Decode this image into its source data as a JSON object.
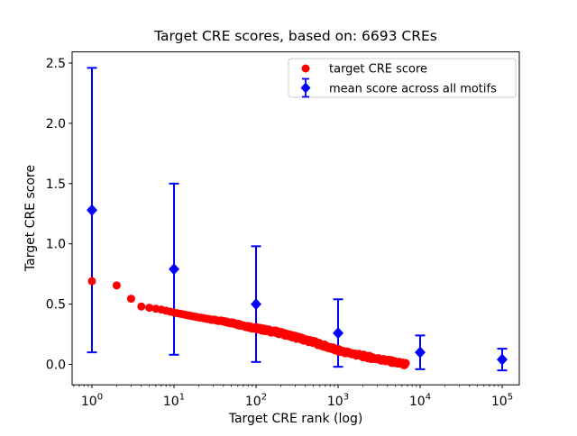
{
  "title": "Target CRE scores, based on: 6693 CREs",
  "x_axis_label": "Target CRE rank (log)",
  "y_axis_label": "Target CRE score",
  "legend": {
    "position": "upper right",
    "items": [
      {
        "label": "target CRE score",
        "marker": "red-circle"
      },
      {
        "label": "mean score across all motifs",
        "marker": "blue-diamond-errorbar"
      }
    ]
  },
  "colors": {
    "target_score": "#ff0000",
    "mean_score": "#0000ff",
    "axis": "#000000",
    "legend_border": "#cccccc",
    "background": "#ffffff"
  },
  "chart_data": {
    "type": "scatter",
    "title": "Target CRE scores, based on: 6693 CREs",
    "xlabel": "Target CRE rank (log)",
    "ylabel": "Target CRE score",
    "x_scale": "log",
    "xlim": [
      0.56,
      178000
    ],
    "ylim": [
      -0.17,
      2.59
    ],
    "x_tick_exponents": [
      0,
      1,
      2,
      3,
      4,
      5
    ],
    "y_ticks": [
      0.0,
      0.5,
      1.0,
      1.5,
      2.0,
      2.5
    ],
    "grid": false,
    "legend_position": "upper right",
    "series": [
      {
        "name": "target CRE score",
        "type": "scatter",
        "color": "#ff0000",
        "marker": "circle",
        "n_points": 6693,
        "anchor_points": [
          [
            1,
            0.69
          ],
          [
            2,
            0.655
          ],
          [
            3,
            0.545
          ],
          [
            4,
            0.48
          ],
          [
            5,
            0.47
          ],
          [
            7,
            0.455
          ],
          [
            10,
            0.43
          ],
          [
            20,
            0.39
          ],
          [
            50,
            0.345
          ],
          [
            100,
            0.3
          ],
          [
            200,
            0.26
          ],
          [
            500,
            0.185
          ],
          [
            1000,
            0.115
          ],
          [
            2000,
            0.07
          ],
          [
            4000,
            0.03
          ],
          [
            6693,
            0.0
          ]
        ]
      },
      {
        "name": "mean score across all motifs",
        "type": "errorbar",
        "color": "#0000ff",
        "marker": "diamond",
        "x": [
          1,
          10,
          100,
          1000,
          10000,
          100000
        ],
        "y": [
          1.28,
          0.79,
          0.5,
          0.26,
          0.1,
          0.04
        ],
        "yerr": [
          1.18,
          0.71,
          0.48,
          0.28,
          0.14,
          0.09
        ]
      }
    ]
  }
}
